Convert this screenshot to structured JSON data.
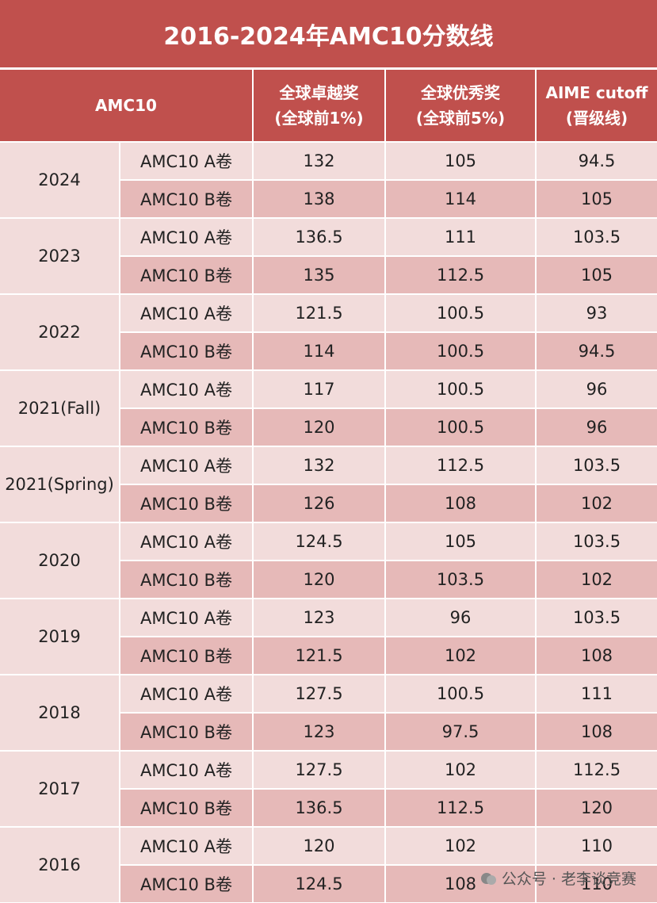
{
  "title": "2016-2024年AMC10分数线",
  "header": {
    "group": "AMC10",
    "columns": [
      [
        "全球卓越奖",
        "(全球前1%)"
      ],
      [
        "全球优秀奖",
        "(全球前5%)"
      ],
      [
        "AIME cutoff",
        "(晋级线)"
      ]
    ]
  },
  "years": [
    {
      "year": "2024",
      "rows": [
        {
          "paper": "AMC10 A卷",
          "values": [
            132,
            105,
            94.5
          ]
        },
        {
          "paper": "AMC10 B卷",
          "values": [
            138,
            114,
            105
          ]
        }
      ]
    },
    {
      "year": "2023",
      "rows": [
        {
          "paper": "AMC10 A卷",
          "values": [
            136.5,
            111,
            103.5
          ]
        },
        {
          "paper": "AMC10 B卷",
          "values": [
            135,
            112.5,
            105
          ]
        }
      ]
    },
    {
      "year": "2022",
      "rows": [
        {
          "paper": "AMC10 A卷",
          "values": [
            121.5,
            100.5,
            93
          ]
        },
        {
          "paper": "AMC10 B卷",
          "values": [
            114,
            100.5,
            94.5
          ]
        }
      ]
    },
    {
      "year": "2021(Fall)",
      "rows": [
        {
          "paper": "AMC10 A卷",
          "values": [
            117,
            100.5,
            96
          ]
        },
        {
          "paper": "AMC10 B卷",
          "values": [
            120,
            100.5,
            96
          ]
        }
      ]
    },
    {
      "year": "2021(Spring)",
      "rows": [
        {
          "paper": "AMC10 A卷",
          "values": [
            132,
            112.5,
            103.5
          ]
        },
        {
          "paper": "AMC10 B卷",
          "values": [
            126,
            108,
            102
          ]
        }
      ]
    },
    {
      "year": "2020",
      "rows": [
        {
          "paper": "AMC10 A卷",
          "values": [
            124.5,
            105,
            103.5
          ]
        },
        {
          "paper": "AMC10 B卷",
          "values": [
            120,
            103.5,
            102
          ]
        }
      ]
    },
    {
      "year": "2019",
      "rows": [
        {
          "paper": "AMC10 A卷",
          "values": [
            123,
            96,
            103.5
          ]
        },
        {
          "paper": "AMC10 B卷",
          "values": [
            121.5,
            102,
            108
          ]
        }
      ]
    },
    {
      "year": "2018",
      "rows": [
        {
          "paper": "AMC10 A卷",
          "values": [
            127.5,
            100.5,
            111
          ]
        },
        {
          "paper": "AMC10 B卷",
          "values": [
            123,
            97.5,
            108
          ]
        }
      ]
    },
    {
      "year": "2017",
      "rows": [
        {
          "paper": "AMC10 A卷",
          "values": [
            127.5,
            102,
            112.5
          ]
        },
        {
          "paper": "AMC10 B卷",
          "values": [
            136.5,
            112.5,
            120
          ]
        }
      ]
    },
    {
      "year": "2016",
      "rows": [
        {
          "paper": "AMC10 A卷",
          "values": [
            120,
            102,
            110
          ]
        },
        {
          "paper": "AMC10 B卷",
          "values": [
            124.5,
            108,
            110
          ]
        }
      ]
    }
  ],
  "watermark": "公众号 · 老李谈竞赛"
}
